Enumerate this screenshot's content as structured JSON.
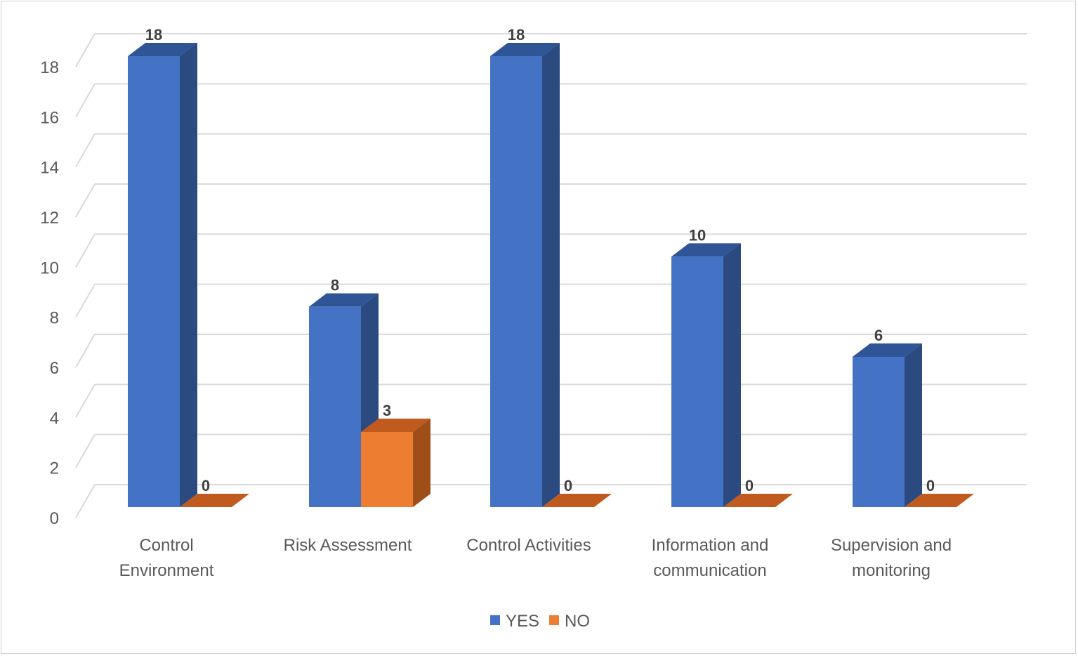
{
  "chart_data": {
    "type": "bar",
    "style": "3d-clustered-column",
    "categories": [
      [
        "Control",
        "Environment"
      ],
      [
        "Risk Assessment"
      ],
      [
        "Control Activities"
      ],
      [
        "Information and",
        "communication"
      ],
      [
        "Supervision and",
        "monitoring"
      ]
    ],
    "series": [
      {
        "name": "YES",
        "values": [
          18,
          8,
          18,
          10,
          6
        ],
        "color": "#4472C4",
        "side_color": "#2B4A80",
        "top_color": "#2F5597"
      },
      {
        "name": "NO",
        "values": [
          0,
          3,
          0,
          0,
          0
        ],
        "color": "#ED7D31",
        "side_color": "#9E4E17",
        "top_color": "#C05A1E"
      }
    ],
    "ylim": [
      0,
      18
    ],
    "yticks": [
      0,
      2,
      4,
      6,
      8,
      10,
      12,
      14,
      16,
      18
    ],
    "grid": true,
    "data_labels": true,
    "legend": "bottom",
    "title": "",
    "xlabel": "",
    "ylabel": ""
  }
}
